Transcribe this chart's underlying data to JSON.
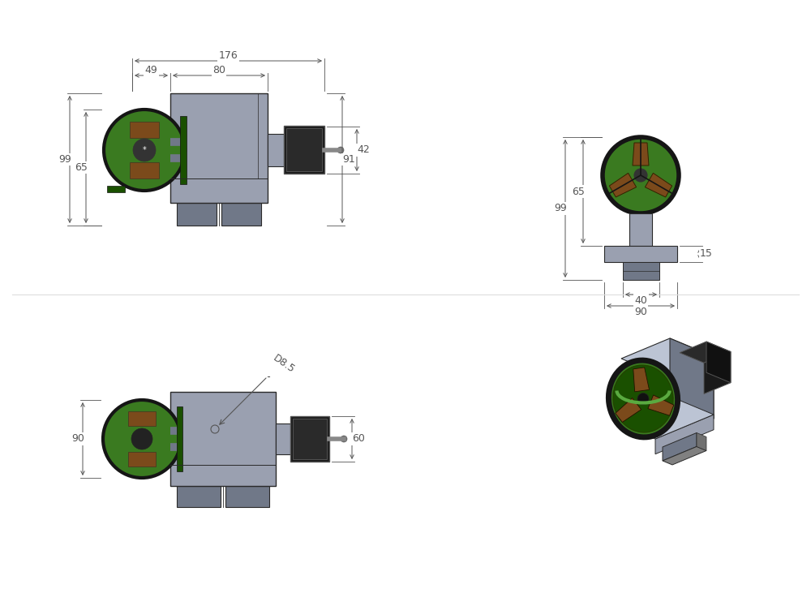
{
  "bg_color": "#ffffff",
  "dim_color": "#555555",
  "line_color": "#2a2a2a",
  "body_gray": "#9aa0b0",
  "body_dark": "#707888",
  "body_light": "#bcc4d4",
  "chuck_green": "#3a7a20",
  "chuck_dark_green": "#1a5000",
  "chuck_black": "#151515",
  "jaw_brown": "#7B4A1B",
  "jaw_light": "#b87840",
  "motor_black": "#1a1a1a",
  "motor_dark": "#2a2a2a",
  "motor_gray": "#666666",
  "motor_shaft_c": "#888888",
  "font_size": 9,
  "arrow_color": "#444444"
}
